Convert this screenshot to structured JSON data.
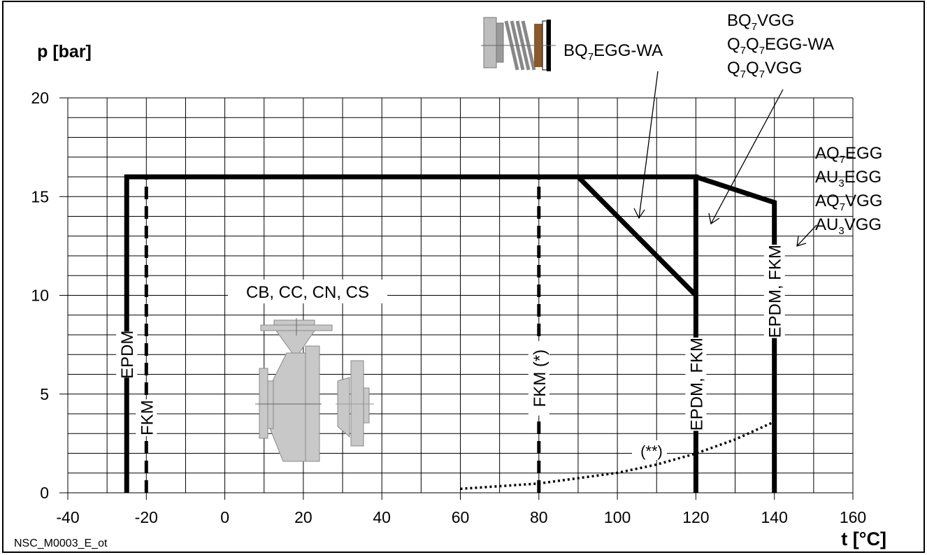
{
  "chart_data": {
    "type": "line",
    "title": "",
    "ylabel": "p [bar]",
    "xlabel": "t [°C]",
    "footnote": "NSC_M0003_E_ot",
    "xlim": [
      -40,
      160
    ],
    "ylim": [
      0,
      20
    ],
    "x_ticks": [
      "-40",
      "-20",
      "0",
      "20",
      "40",
      "60",
      "80",
      "100",
      "120",
      "140",
      "160"
    ],
    "y_ticks": [
      "0",
      "5",
      "10",
      "15",
      "20"
    ],
    "grid": true,
    "series": [
      {
        "key": "limit_main",
        "style": "solid-thick",
        "x": [
          -25,
          -25,
          120,
          120
        ],
        "y": [
          0,
          16,
          16,
          0
        ]
      },
      {
        "key": "limit_wa",
        "style": "solid-thick",
        "x": [
          90,
          120
        ],
        "y": [
          16,
          10
        ]
      },
      {
        "key": "limit_ext",
        "style": "solid-thick",
        "x": [
          120,
          140,
          140
        ],
        "y": [
          16,
          14.7,
          0
        ]
      },
      {
        "key": "fkm_minus20",
        "style": "dashed",
        "x": [
          -20,
          -20
        ],
        "y": [
          0,
          16
        ]
      },
      {
        "key": "fkm_80",
        "style": "dashed",
        "x": [
          80,
          80
        ],
        "y": [
          0,
          16
        ]
      },
      {
        "key": "vapour",
        "style": "dotted",
        "x": [
          60,
          80,
          100,
          110,
          120,
          130,
          140
        ],
        "y": [
          0.2,
          0.47,
          1.01,
          1.43,
          1.99,
          2.7,
          3.6
        ]
      }
    ],
    "annotations": {
      "seal_wa": [
        {
          "parts": [
            [
              "BQ",
              ""
            ],
            [
              "7",
              "sub"
            ],
            [
              "EGG-WA",
              ""
            ]
          ]
        }
      ],
      "seal_vgg": [
        {
          "parts": [
            [
              "BQ",
              ""
            ],
            [
              "7",
              "sub"
            ],
            [
              "VGG",
              ""
            ]
          ]
        },
        {
          "parts": [
            [
              "Q",
              ""
            ],
            [
              "7",
              "sub"
            ],
            [
              "Q",
              ""
            ],
            [
              "7",
              "sub"
            ],
            [
              "EGG-WA",
              ""
            ]
          ]
        },
        {
          "parts": [
            [
              "Q",
              ""
            ],
            [
              "7",
              "sub"
            ],
            [
              "Q",
              ""
            ],
            [
              "7",
              "sub"
            ],
            [
              "VGG",
              ""
            ]
          ]
        }
      ],
      "seal_a": [
        {
          "parts": [
            [
              "AQ",
              ""
            ],
            [
              "7",
              "sub"
            ],
            [
              "EGG",
              ""
            ]
          ]
        },
        {
          "parts": [
            [
              "AU",
              ""
            ],
            [
              "3",
              "sub"
            ],
            [
              "EGG",
              ""
            ]
          ]
        },
        {
          "parts": [
            [
              "AQ",
              ""
            ],
            [
              "7",
              "sub"
            ],
            [
              "VGG",
              ""
            ]
          ]
        },
        {
          "parts": [
            [
              "AU",
              ""
            ],
            [
              "3",
              "sub"
            ],
            [
              "VGG",
              ""
            ]
          ]
        }
      ],
      "housing": "CB, CC, CN, CS",
      "vertical_labels": {
        "epdm_minus25": "EPDM",
        "fkm_minus20": "FKM",
        "fkm_80": "FKM (*)",
        "epdm_fkm_120": "EPDM, FKM",
        "epdm_fkm_140": "EPDM, FKM"
      },
      "vapour_label": "(**)"
    }
  }
}
